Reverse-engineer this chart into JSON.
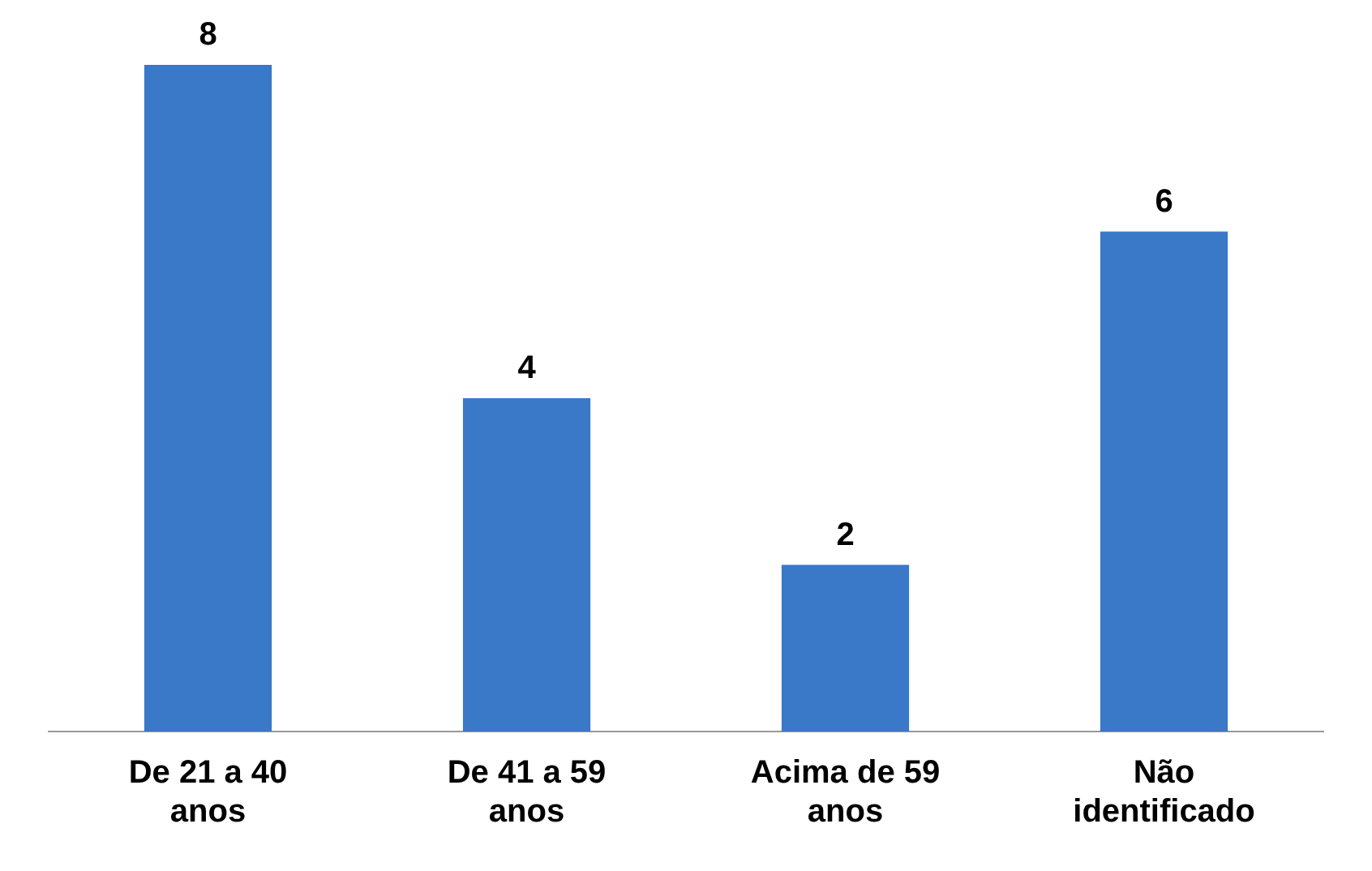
{
  "chart_data": {
    "type": "bar",
    "categories": [
      "De 21 a 40 anos",
      "De 41 a 59 anos",
      "Acima de 59 anos",
      "Não identificado"
    ],
    "values": [
      8,
      4,
      2,
      6
    ],
    "color": "#3a78c8",
    "data_labels": true,
    "legend": false,
    "grid": false
  }
}
